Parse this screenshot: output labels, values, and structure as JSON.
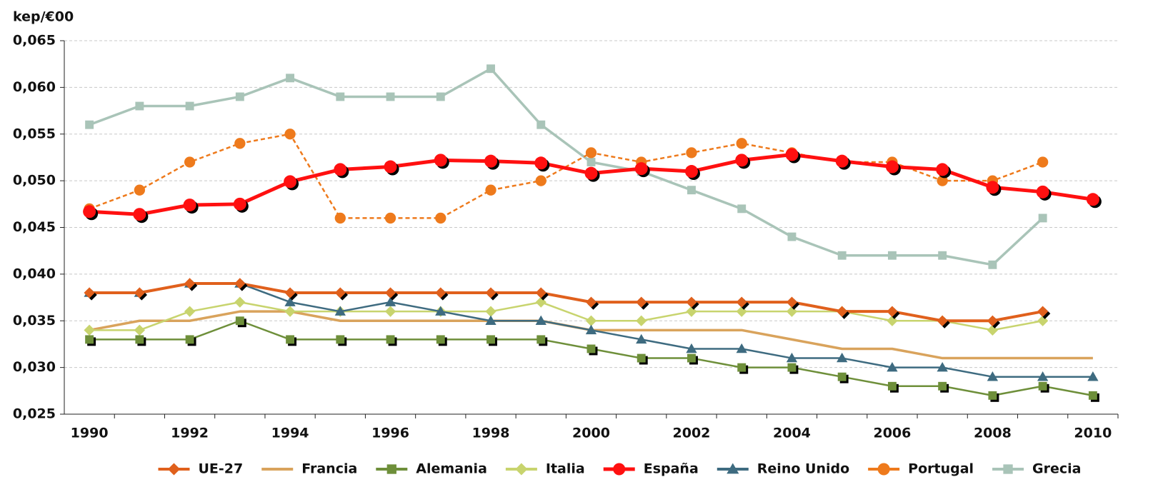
{
  "chart_data": {
    "type": "line",
    "y_label": "kep/€00",
    "x": [
      1990,
      1991,
      1992,
      1993,
      1994,
      1995,
      1996,
      1997,
      1998,
      1999,
      2000,
      2001,
      2002,
      2003,
      2004,
      2005,
      2006,
      2007,
      2008,
      2009,
      2010
    ],
    "xlim": [
      1989.5,
      2010.5
    ],
    "xticks": [
      1990,
      1992,
      1994,
      1996,
      1998,
      2000,
      2002,
      2004,
      2006,
      2008,
      2010
    ],
    "ylim": [
      0.025,
      0.065
    ],
    "yticks": [
      {
        "value": 0.025,
        "label": "0,025"
      },
      {
        "value": 0.03,
        "label": "0,030"
      },
      {
        "value": 0.035,
        "label": "0,035"
      },
      {
        "value": 0.04,
        "label": "0,040"
      },
      {
        "value": 0.045,
        "label": "0,045"
      },
      {
        "value": 0.05,
        "label": "0,050"
      },
      {
        "value": 0.055,
        "label": "0,055"
      },
      {
        "value": 0.06,
        "label": "0,060"
      },
      {
        "value": 0.065,
        "label": "0,065"
      }
    ],
    "grid": true,
    "legend": "bottom",
    "series": [
      {
        "name": "UE-27",
        "color": "#e0601c",
        "marker": "diamond",
        "width": 4,
        "marker_shadow": true,
        "values": [
          0.038,
          0.038,
          0.039,
          0.039,
          0.038,
          0.038,
          0.038,
          0.038,
          0.038,
          0.038,
          0.037,
          0.037,
          0.037,
          0.037,
          0.037,
          0.036,
          0.036,
          0.035,
          0.035,
          0.036,
          null
        ]
      },
      {
        "name": "Francia",
        "color": "#d9a35c",
        "marker": "none",
        "width": 3.5,
        "marker_shadow": false,
        "values": [
          0.034,
          0.035,
          0.035,
          0.036,
          0.036,
          0.035,
          0.035,
          0.035,
          0.035,
          0.035,
          0.034,
          0.034,
          0.034,
          0.034,
          0.033,
          0.032,
          0.032,
          0.031,
          0.031,
          0.031,
          0.031
        ]
      },
      {
        "name": "Alemania",
        "color": "#6e8f3a",
        "marker": "square",
        "width": 2.5,
        "marker_shadow": true,
        "values": [
          0.033,
          0.033,
          0.033,
          0.035,
          0.033,
          0.033,
          0.033,
          0.033,
          0.033,
          0.033,
          0.032,
          0.031,
          0.031,
          0.03,
          0.03,
          0.029,
          0.028,
          0.028,
          0.027,
          0.028,
          0.027
        ]
      },
      {
        "name": "Italia",
        "color": "#c8d46e",
        "marker": "diamond",
        "width": 2.5,
        "marker_shadow": false,
        "values": [
          0.034,
          0.034,
          0.036,
          0.037,
          0.036,
          0.036,
          0.036,
          0.036,
          0.036,
          0.037,
          0.035,
          0.035,
          0.036,
          0.036,
          0.036,
          0.036,
          0.035,
          0.035,
          0.034,
          0.035,
          null
        ]
      },
      {
        "name": "España",
        "color": "#ff1010",
        "marker": "circle",
        "width": 5,
        "marker_shadow": true,
        "values": [
          0.0467,
          0.0464,
          0.0474,
          0.0475,
          0.0499,
          0.0512,
          0.0515,
          0.0522,
          0.0521,
          0.0519,
          0.0508,
          0.0513,
          0.051,
          0.0522,
          0.0528,
          0.0521,
          0.0515,
          0.0512,
          0.0493,
          0.0488,
          0.048
        ]
      },
      {
        "name": "Reino Unido",
        "color": "#3e6b80",
        "marker": "triangle",
        "width": 2.5,
        "marker_shadow": false,
        "values": [
          0.038,
          0.038,
          0.039,
          0.039,
          0.037,
          0.036,
          0.037,
          0.036,
          0.035,
          0.035,
          0.034,
          0.033,
          0.032,
          0.032,
          0.031,
          0.031,
          0.03,
          0.03,
          0.029,
          0.029,
          0.029
        ]
      },
      {
        "name": "Portugal",
        "color": "#ee7a1c",
        "marker": "circle",
        "width": 2.5,
        "dashed": true,
        "marker_shadow": false,
        "values": [
          0.047,
          0.049,
          0.052,
          0.054,
          0.055,
          0.046,
          0.046,
          0.046,
          0.049,
          0.05,
          0.053,
          0.052,
          0.053,
          0.054,
          0.053,
          0.052,
          0.052,
          0.05,
          0.05,
          0.052,
          null
        ]
      },
      {
        "name": "Grecia",
        "color": "#a9c4b8",
        "marker": "square",
        "width": 3.5,
        "marker_shadow": false,
        "values": [
          0.056,
          0.058,
          0.058,
          0.059,
          0.061,
          0.059,
          0.059,
          0.059,
          0.062,
          0.056,
          0.052,
          0.051,
          0.049,
          0.047,
          0.044,
          0.042,
          0.042,
          0.042,
          0.041,
          0.046,
          null
        ]
      }
    ]
  }
}
